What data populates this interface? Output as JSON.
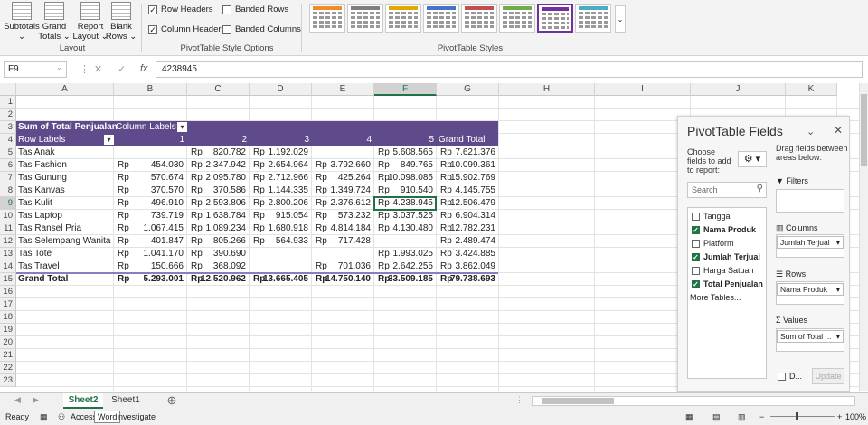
{
  "ribbon": {
    "layout_buttons": [
      {
        "line1": "Subtotals",
        "line2": "⌄"
      },
      {
        "line1": "Grand",
        "line2": "Totals ⌄"
      },
      {
        "line1": "Report",
        "line2": "Layout ⌄"
      },
      {
        "line1": "Blank",
        "line2": "Rows ⌄"
      }
    ],
    "layout_group": "Layout",
    "options": {
      "row_headers": "Row Headers",
      "banded_rows": "Banded Rows",
      "column_headers": "Column Headers",
      "banded_columns": "Banded Columns"
    },
    "options_group": "PivotTable Style Options",
    "styles_group": "PivotTable Styles",
    "style_colors": [
      "#f28c28",
      "#7f7f7f",
      "#e0a800",
      "#4472c4",
      "#c0504d",
      "#70ad47",
      "#7030a0",
      "#4bacc6"
    ]
  },
  "formula_bar": {
    "name_box": "F9",
    "value": "4238945"
  },
  "columns": [
    "A",
    "B",
    "C",
    "D",
    "E",
    "F",
    "G",
    "H",
    "I",
    "J",
    "K"
  ],
  "rows": [
    "1",
    "2",
    "3",
    "4",
    "5",
    "6",
    "7",
    "8",
    "9",
    "10",
    "11",
    "12",
    "13",
    "14",
    "15",
    "16",
    "17",
    "18",
    "19",
    "20",
    "21",
    "22",
    "23"
  ],
  "pivot_table": {
    "title": "Sum of Total Penjualan",
    "col_labels": "Column Labels",
    "row_labels": "Row Labels",
    "col_keys": [
      "1",
      "2",
      "3",
      "4",
      "5"
    ],
    "grand_total_hdr": "Grand Total",
    "data_rows": [
      {
        "label": "Tas Anak",
        "v": [
          "",
          "820.782",
          "1.192.029",
          "",
          "5.608.565"
        ],
        "gt": "7.621.376"
      },
      {
        "label": "Tas Fashion",
        "v": [
          "454.030",
          "2.347.942",
          "2.654.964",
          "3.792.660",
          "849.765"
        ],
        "gt": "10.099.361"
      },
      {
        "label": "Tas Gunung",
        "v": [
          "570.674",
          "2.095.780",
          "2.712.966",
          "425.264",
          "10.098.085"
        ],
        "gt": "15.902.769"
      },
      {
        "label": "Tas Kanvas",
        "v": [
          "370.570",
          "370.586",
          "1.144.335",
          "1.349.724",
          "910.540"
        ],
        "gt": "4.145.755"
      },
      {
        "label": "Tas Kulit",
        "v": [
          "496.910",
          "2.593.806",
          "2.800.206",
          "2.376.612",
          "4.238.945"
        ],
        "gt": "12.506.479"
      },
      {
        "label": "Tas Laptop",
        "v": [
          "739.719",
          "1.638.784",
          "915.054",
          "573.232",
          "3.037.525"
        ],
        "gt": "6.904.314"
      },
      {
        "label": "Tas Ransel Pria",
        "v": [
          "1.067.415",
          "1.089.234",
          "1.680.918",
          "4.814.184",
          "4.130.480"
        ],
        "gt": "12.782.231"
      },
      {
        "label": "Tas Selempang Wanita",
        "v": [
          "401.847",
          "805.266",
          "564.933",
          "717.428",
          ""
        ],
        "gt": "2.489.474"
      },
      {
        "label": "Tas Tote",
        "v": [
          "1.041.170",
          "390.690",
          "",
          "",
          "1.993.025"
        ],
        "gt": "3.424.885"
      },
      {
        "label": "Tas Travel",
        "v": [
          "150.666",
          "368.092",
          "",
          "701.036",
          "2.642.255"
        ],
        "gt": "3.862.049"
      }
    ],
    "grand_total": {
      "label": "Grand Total",
      "v": [
        "5.293.001",
        "12.520.962",
        "13.665.405",
        "14.750.140",
        "33.509.185"
      ],
      "gt": "79.738.693"
    },
    "currency": "Rp"
  },
  "pivot_panel": {
    "title": "PivotTable Fields",
    "choose_text": [
      "Choose",
      "fields to add",
      "to report:"
    ],
    "drag_text": [
      "Drag fields between",
      "areas below:"
    ],
    "search_placeholder": "Search",
    "fields": [
      {
        "name": "Tanggal",
        "checked": false
      },
      {
        "name": "Nama Produk",
        "checked": true
      },
      {
        "name": "Platform",
        "checked": false
      },
      {
        "name": "Jumlah Terjual",
        "checked": true
      },
      {
        "name": "Harga Satuan",
        "checked": false
      },
      {
        "name": "Total Penjualan",
        "checked": true
      }
    ],
    "more_tables": "More Tables...",
    "filters": "Filters",
    "columns_area": "Columns",
    "columns_item": "Jumlah Terjual",
    "rows_area": "Rows",
    "rows_item": "Nama Produk",
    "values_area": "Values",
    "values_item": "Sum of Total ...",
    "defer": "D...",
    "update": "Update"
  },
  "sheet_tabs": [
    "Sheet2",
    "Sheet1"
  ],
  "status": {
    "ready": "Ready",
    "access": "Access",
    "tooltip": "Word",
    "investigate": "nvestigate",
    "zoom": "100%"
  }
}
